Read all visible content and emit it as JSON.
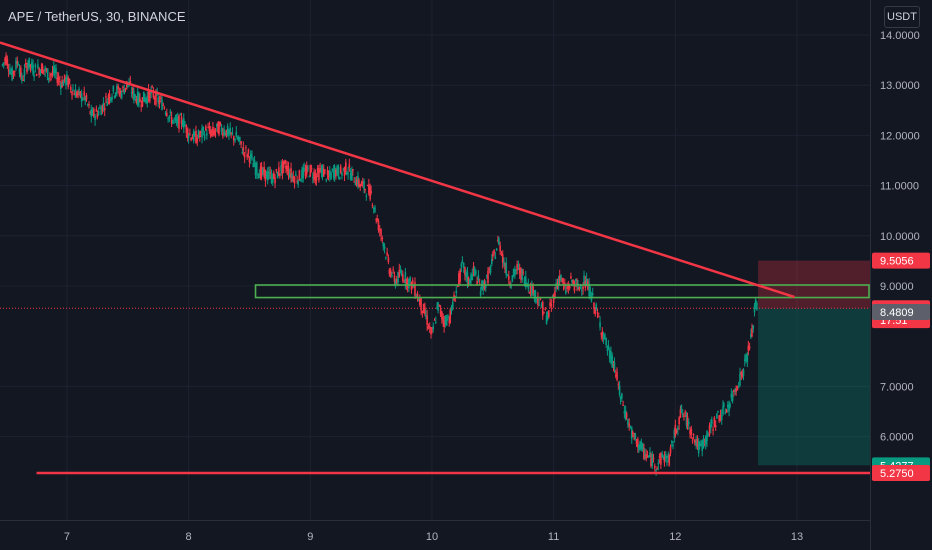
{
  "header": {
    "title": "APE / TetherUS, 30, BINANCE",
    "currency": "USDT"
  },
  "chart_data": {
    "type": "candlestick",
    "x_ticks": [
      "7",
      "8",
      "9",
      "10",
      "11",
      "12",
      "13"
    ],
    "y_ticks": [
      "14.0000",
      "13.0000",
      "12.0000",
      "11.0000",
      "10.0000",
      "9.0000",
      "7.0000",
      "6.0000"
    ],
    "ylim": [
      4.8,
      14.7
    ],
    "xlim": [
      6.45,
      13.6
    ],
    "grid": true,
    "price_labels": [
      {
        "text": "9.5056",
        "value": 9.5056,
        "color": "#f23645"
      },
      {
        "text": "8.5556",
        "value": 8.5556,
        "color": "#f23645"
      },
      {
        "text": "17:51",
        "value": 8.32,
        "color": "#f23645"
      },
      {
        "text": "8.4809",
        "value": 8.4809,
        "color": "#5d606b"
      },
      {
        "text": "5.4277",
        "value": 5.4277,
        "color": "#089981"
      },
      {
        "text": "5.2750",
        "value": 5.275,
        "color": "#f23645"
      }
    ],
    "current_price": 8.5556,
    "drawings": {
      "downtrend_line": {
        "start": [
          6.45,
          13.85
        ],
        "end": [
          12.98,
          8.78
        ],
        "color": "#f23645"
      },
      "support_line": {
        "start": [
          6.75,
          5.275
        ],
        "end": [
          13.6,
          5.275
        ],
        "color": "#f23645"
      },
      "resistance_zone": {
        "x_start": 8.55,
        "x_end": 13.6,
        "y_low": 8.77,
        "y_high": 9.02,
        "color": "#4caf50"
      },
      "short_position": {
        "x_start": 12.68,
        "x_end": 13.6,
        "entry": 8.5556,
        "stop": 9.5056,
        "target": 5.4277
      }
    },
    "ohlc_path": [
      [
        6.47,
        13.4
      ],
      [
        6.5,
        13.55
      ],
      [
        6.55,
        13.2
      ],
      [
        6.6,
        13.5
      ],
      [
        6.63,
        13.1
      ],
      [
        6.68,
        13.45
      ],
      [
        6.73,
        13.3
      ],
      [
        6.8,
        13.35
      ],
      [
        6.85,
        13.2
      ],
      [
        6.9,
        13.25
      ],
      [
        6.95,
        13.05
      ],
      [
        7.0,
        13.1
      ],
      [
        7.05,
        12.9
      ],
      [
        7.1,
        12.8
      ],
      [
        7.15,
        12.75
      ],
      [
        7.2,
        12.4
      ],
      [
        7.25,
        12.45
      ],
      [
        7.3,
        12.6
      ],
      [
        7.35,
        12.8
      ],
      [
        7.4,
        12.9
      ],
      [
        7.45,
        12.85
      ],
      [
        7.5,
        13.05
      ],
      [
        7.55,
        12.8
      ],
      [
        7.6,
        12.7
      ],
      [
        7.65,
        12.75
      ],
      [
        7.7,
        12.85
      ],
      [
        7.75,
        12.7
      ],
      [
        7.8,
        12.6
      ],
      [
        7.85,
        12.35
      ],
      [
        7.9,
        12.25
      ],
      [
        7.95,
        12.3
      ],
      [
        8.0,
        12.05
      ],
      [
        8.05,
        11.95
      ],
      [
        8.1,
        12.0
      ],
      [
        8.15,
        12.1
      ],
      [
        8.2,
        12.05
      ],
      [
        8.25,
        12.15
      ],
      [
        8.3,
        12.1
      ],
      [
        8.35,
        12.0
      ],
      [
        8.4,
        11.95
      ],
      [
        8.45,
        11.7
      ],
      [
        8.5,
        11.6
      ],
      [
        8.55,
        11.35
      ],
      [
        8.6,
        11.25
      ],
      [
        8.65,
        11.2
      ],
      [
        8.7,
        11.15
      ],
      [
        8.75,
        11.3
      ],
      [
        8.8,
        11.4
      ],
      [
        8.85,
        11.2
      ],
      [
        8.9,
        11.15
      ],
      [
        8.95,
        11.25
      ],
      [
        9.0,
        11.3
      ],
      [
        9.05,
        11.2
      ],
      [
        9.1,
        11.3
      ],
      [
        9.15,
        11.15
      ],
      [
        9.2,
        11.3
      ],
      [
        9.25,
        11.25
      ],
      [
        9.3,
        11.35
      ],
      [
        9.35,
        11.2
      ],
      [
        9.4,
        11.05
      ],
      [
        9.45,
        10.95
      ],
      [
        9.5,
        10.85
      ],
      [
        9.55,
        10.3
      ],
      [
        9.6,
        9.9
      ],
      [
        9.65,
        9.35
      ],
      [
        9.7,
        9.1
      ],
      [
        9.75,
        9.25
      ],
      [
        9.8,
        9.1
      ],
      [
        9.85,
        9.0
      ],
      [
        9.9,
        8.7
      ],
      [
        9.95,
        8.4
      ],
      [
        10.0,
        8.0
      ],
      [
        10.05,
        8.6
      ],
      [
        10.1,
        8.3
      ],
      [
        10.15,
        8.4
      ],
      [
        10.2,
        8.9
      ],
      [
        10.25,
        9.4
      ],
      [
        10.3,
        9.1
      ],
      [
        10.35,
        9.3
      ],
      [
        10.4,
        8.95
      ],
      [
        10.45,
        9.1
      ],
      [
        10.5,
        9.5
      ],
      [
        10.55,
        9.9
      ],
      [
        10.6,
        9.4
      ],
      [
        10.65,
        9.1
      ],
      [
        10.7,
        9.35
      ],
      [
        10.75,
        9.2
      ],
      [
        10.8,
        9.0
      ],
      [
        10.85,
        8.85
      ],
      [
        10.9,
        8.6
      ],
      [
        10.95,
        8.35
      ],
      [
        11.0,
        8.8
      ],
      [
        11.05,
        9.2
      ],
      [
        11.1,
        8.9
      ],
      [
        11.15,
        9.1
      ],
      [
        11.2,
        8.95
      ],
      [
        11.25,
        9.1
      ],
      [
        11.3,
        8.9
      ],
      [
        11.35,
        8.5
      ],
      [
        11.4,
        8.1
      ],
      [
        11.45,
        7.7
      ],
      [
        11.5,
        7.4
      ],
      [
        11.55,
        6.8
      ],
      [
        11.6,
        6.4
      ],
      [
        11.65,
        6.0
      ],
      [
        11.7,
        5.85
      ],
      [
        11.75,
        5.65
      ],
      [
        11.8,
        5.55
      ],
      [
        11.85,
        5.45
      ],
      [
        11.9,
        5.6
      ],
      [
        11.95,
        5.55
      ],
      [
        12.0,
        6.1
      ],
      [
        12.05,
        6.5
      ],
      [
        12.1,
        6.3
      ],
      [
        12.15,
        6.0
      ],
      [
        12.2,
        5.75
      ],
      [
        12.25,
        5.95
      ],
      [
        12.3,
        6.2
      ],
      [
        12.35,
        6.4
      ],
      [
        12.4,
        6.5
      ],
      [
        12.45,
        6.65
      ],
      [
        12.5,
        7.0
      ],
      [
        12.55,
        7.25
      ],
      [
        12.6,
        7.7
      ],
      [
        12.63,
        8.05
      ],
      [
        12.66,
        8.65
      ],
      [
        12.68,
        8.55
      ]
    ]
  }
}
